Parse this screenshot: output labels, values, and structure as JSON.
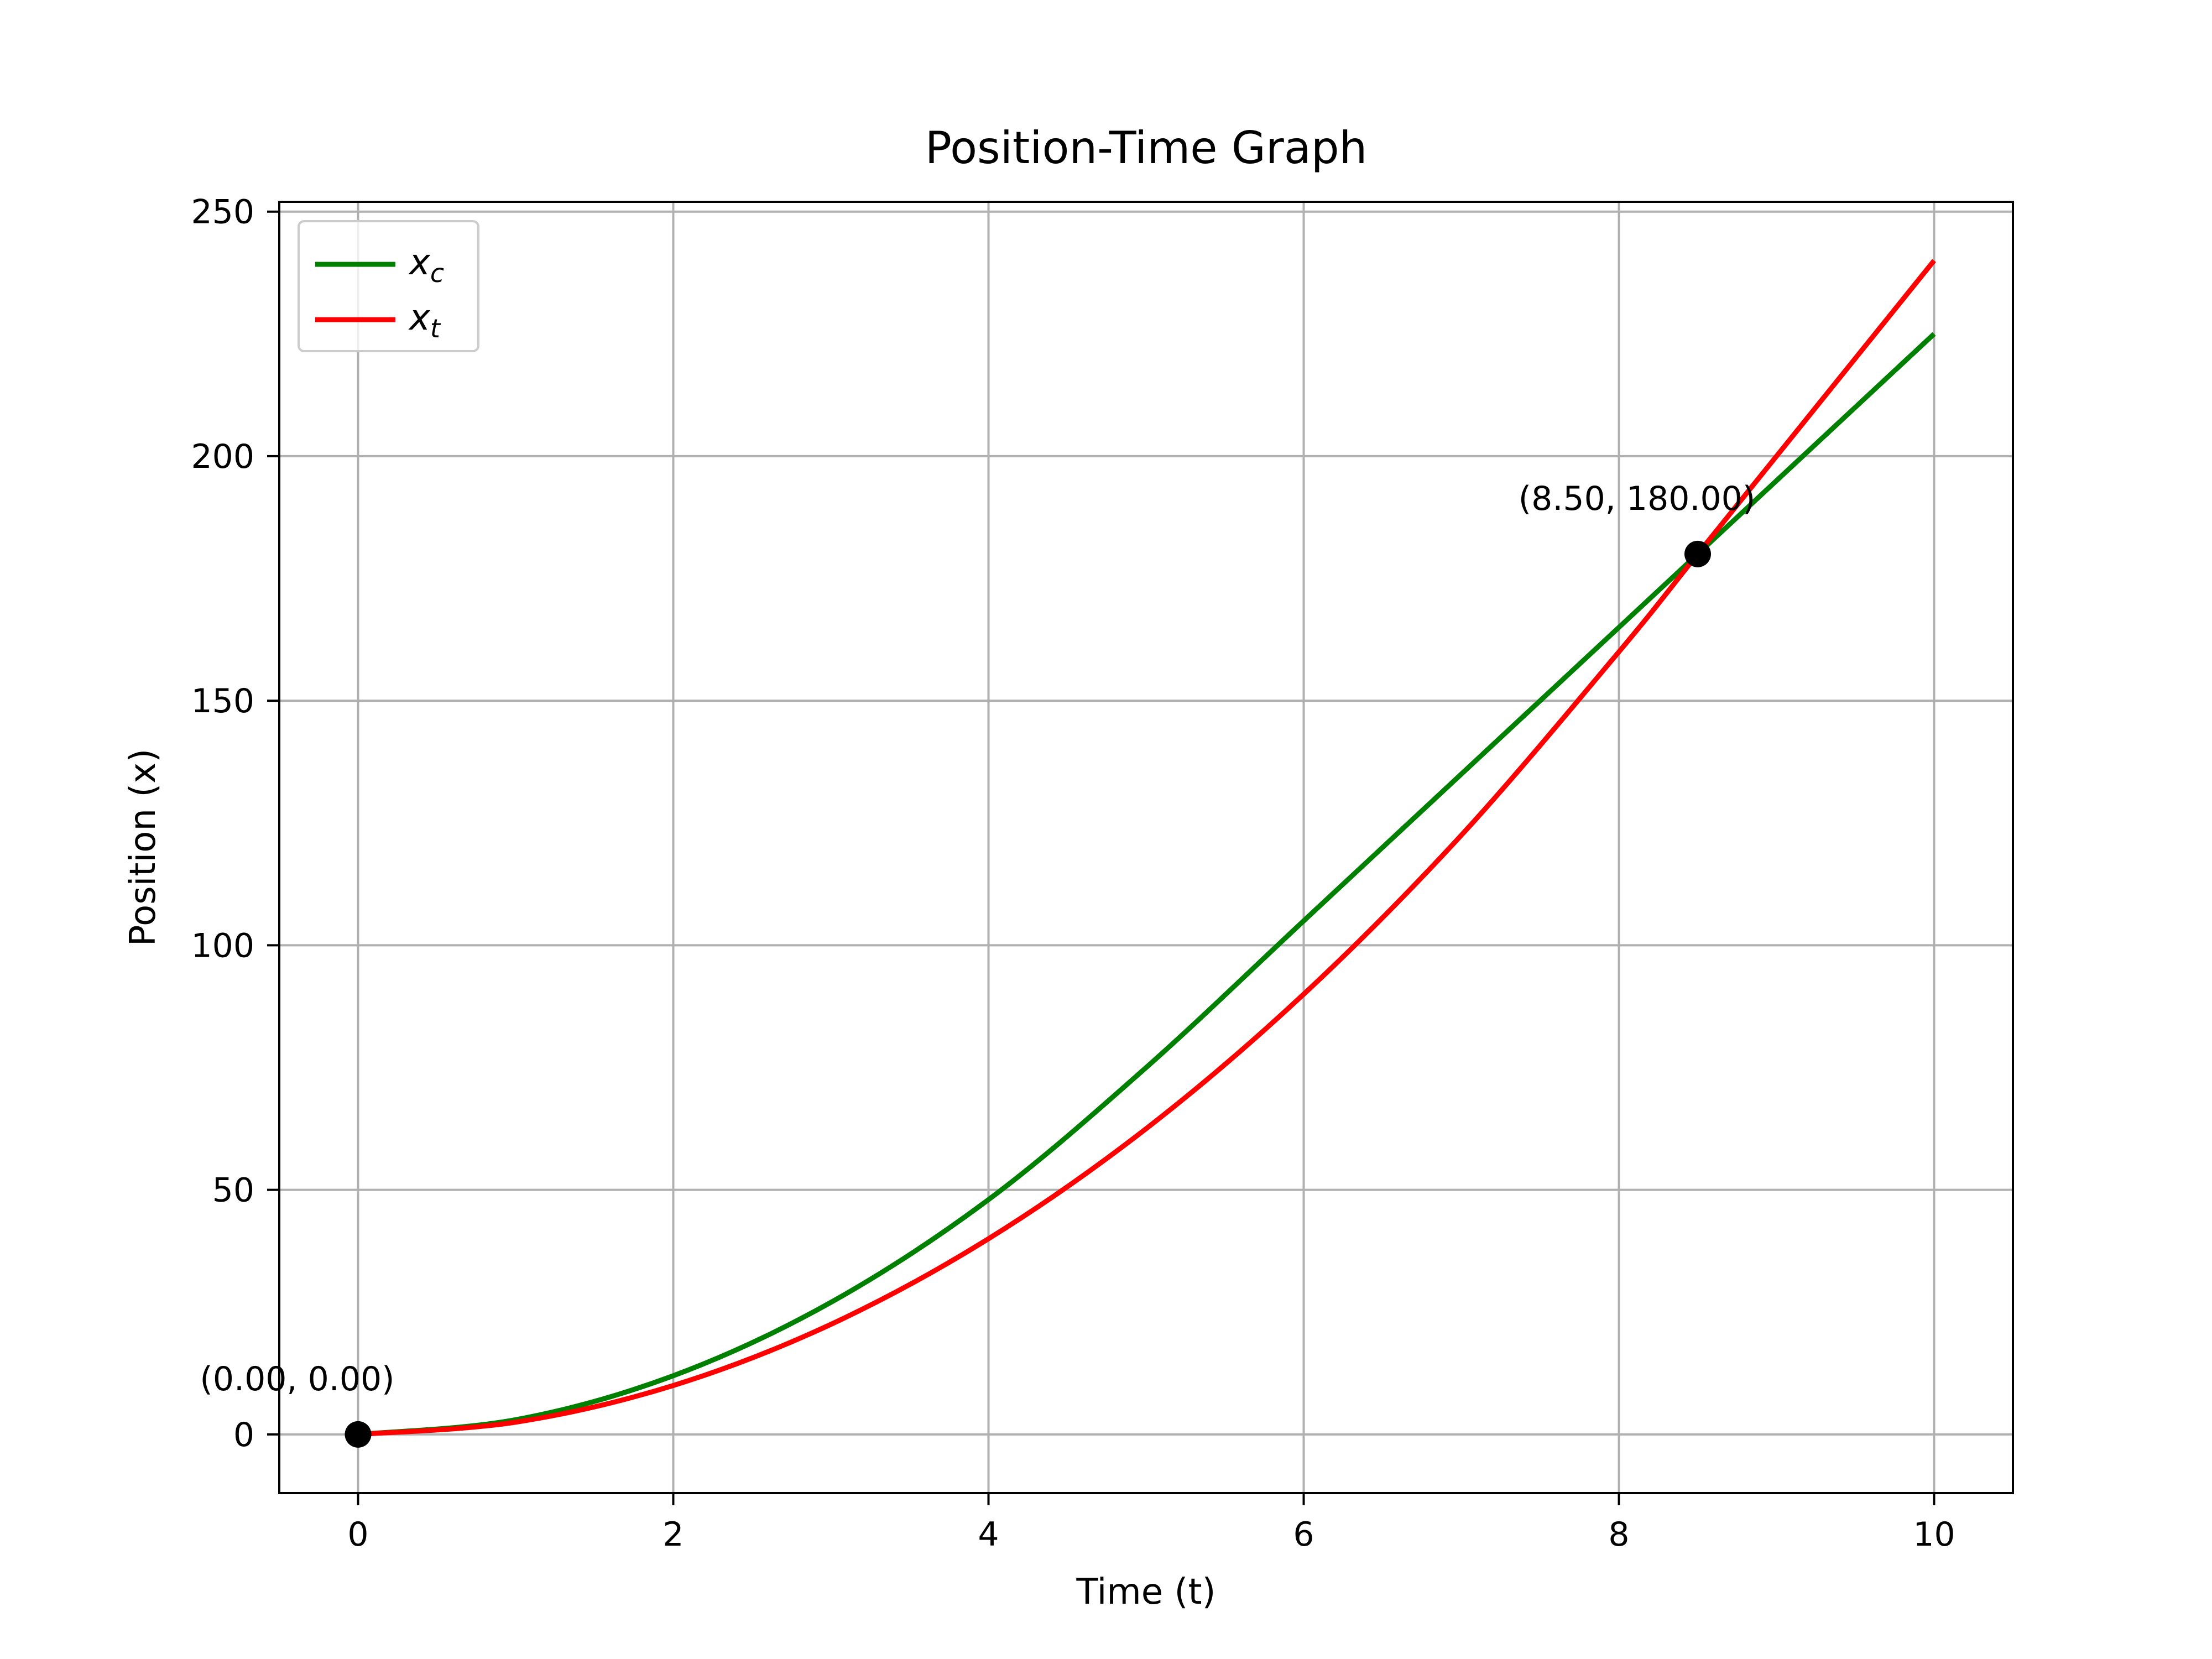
{
  "chart_data": {
    "type": "line",
    "title": "Position-Time Graph",
    "xlabel": "Time (t)",
    "ylabel": "Position (x)",
    "xlim": [
      -0.5,
      10.5
    ],
    "ylim": [
      -12,
      252
    ],
    "x_ticks": [
      0,
      2,
      4,
      6,
      8,
      10
    ],
    "y_ticks": [
      0,
      50,
      100,
      150,
      200,
      250
    ],
    "grid": true,
    "legend_position": "top-left",
    "series": [
      {
        "name": "x_c",
        "legend_base": "x",
        "legend_sub": "c",
        "color": "#008000",
        "x": [
          0,
          1,
          2,
          3,
          4,
          5,
          6,
          7,
          8,
          8.5,
          9,
          10
        ],
        "y": [
          0,
          3,
          12,
          27,
          48,
          75,
          105,
          135,
          165,
          180,
          195,
          225
        ]
      },
      {
        "name": "x_t",
        "legend_base": "x",
        "legend_sub": "t",
        "color": "#ff0000",
        "x": [
          0,
          1,
          2,
          3,
          4,
          5,
          6,
          7,
          8,
          8.5,
          9,
          10
        ],
        "y": [
          0,
          2.5,
          10,
          22.5,
          40,
          62.5,
          90,
          122.5,
          160,
          180,
          200,
          240
        ]
      }
    ],
    "points": [
      {
        "x": 0,
        "y": 0,
        "label": "(0.00, 0.00)"
      },
      {
        "x": 8.5,
        "y": 180,
        "label": "(8.50, 180.00)"
      }
    ]
  }
}
